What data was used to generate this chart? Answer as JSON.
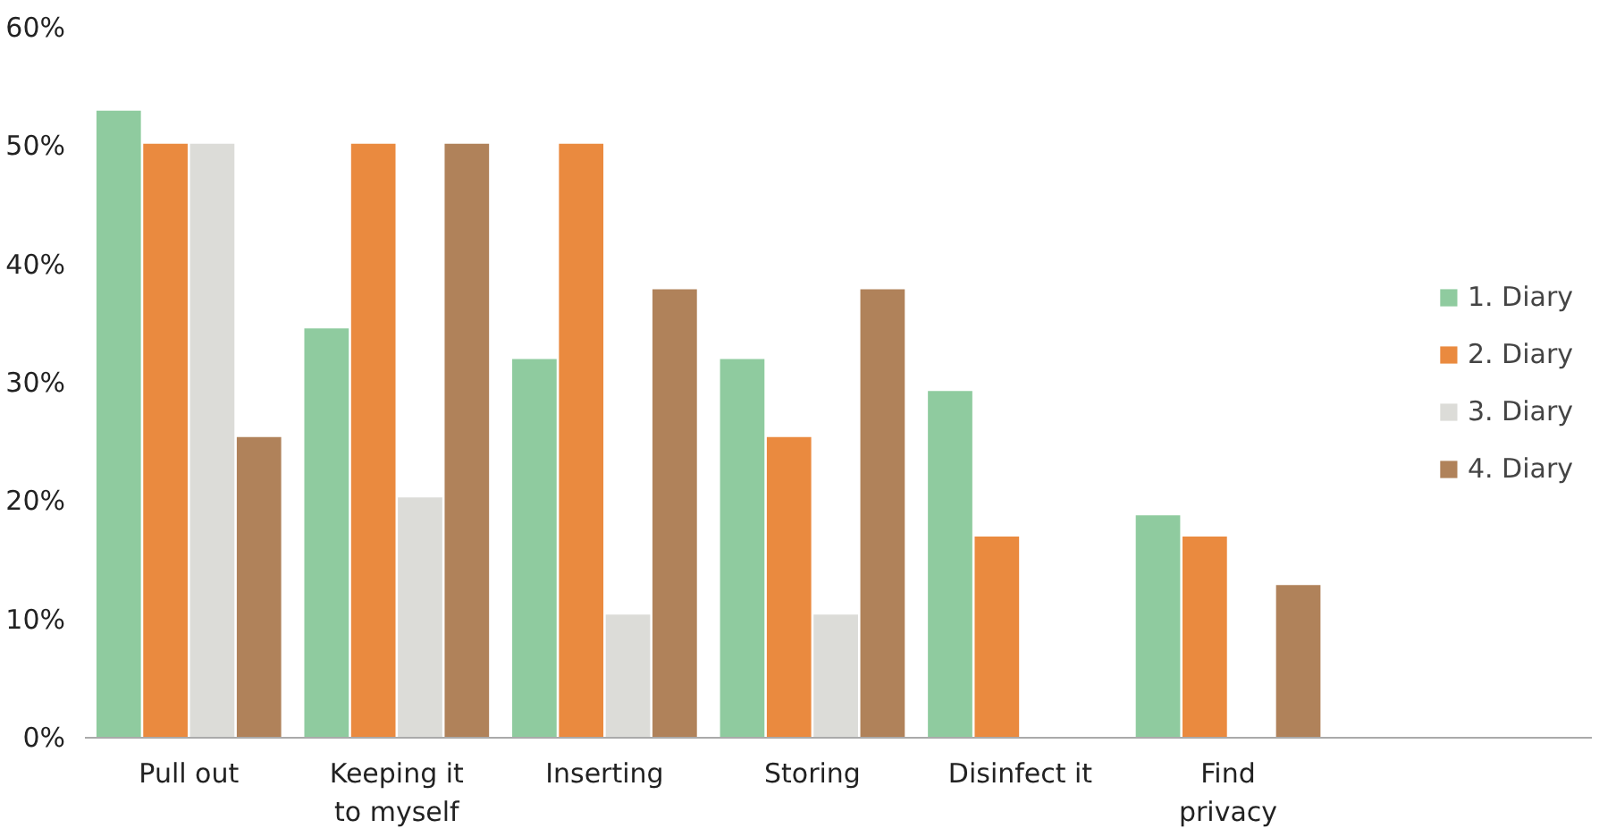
{
  "chart_data": {
    "type": "bar",
    "categories": [
      "Pull out",
      "Keeping it\nto myself",
      "Inserting",
      "Storing",
      "Disinfect it",
      "Find\nprivacy"
    ],
    "series": [
      {
        "name": "1. Diary",
        "color": "#8fcb9f",
        "values": [
          53,
          34.6,
          32,
          32,
          29.3,
          18.8
        ]
      },
      {
        "name": "2. Diary",
        "color": "#ea8a3f",
        "values": [
          50.2,
          50.2,
          50.2,
          25.4,
          17,
          17
        ]
      },
      {
        "name": "3. Diary",
        "color": "#dcdcd8",
        "values": [
          50.2,
          20.3,
          10.4,
          10.4,
          null,
          null
        ]
      },
      {
        "name": "4. Diary",
        "color": "#b0825a",
        "values": [
          25.4,
          50.2,
          37.9,
          37.9,
          null,
          12.9
        ]
      }
    ],
    "ylim": [
      0,
      60
    ],
    "yticks": [
      {
        "value": 0,
        "label": "0%"
      },
      {
        "value": 10,
        "label": "10%"
      },
      {
        "value": 20,
        "label": "20%"
      },
      {
        "value": 30,
        "label": "30%"
      },
      {
        "value": 40,
        "label": "40%"
      },
      {
        "value": 50,
        "label": "50%"
      },
      {
        "value": 60,
        "label": "60%"
      }
    ],
    "grid": false,
    "legend": "right"
  }
}
